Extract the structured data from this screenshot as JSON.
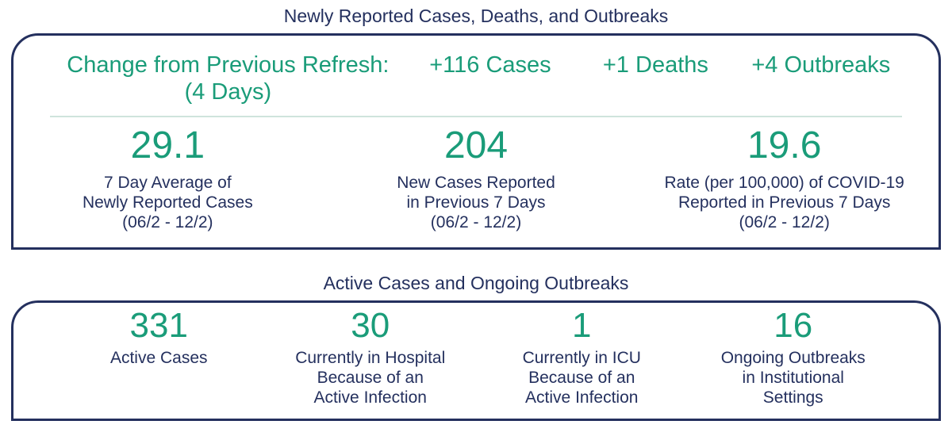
{
  "colors": {
    "navy": "#24305e",
    "green": "#1a9c79",
    "divider": "#cfe4dc"
  },
  "section1": {
    "title": "Newly Reported Cases, Deaths, and Outbreaks",
    "refresh": {
      "label_line1": "Change from Previous Refresh:",
      "label_line2": "(4 Days)",
      "deltas": [
        {
          "text": "+116 Cases"
        },
        {
          "text": "+1 Deaths"
        },
        {
          "text": "+4 Outbreaks"
        }
      ]
    },
    "stats": [
      {
        "value": "29.1",
        "label": "7 Day Average of\nNewly Reported Cases\n(06/2 - 12/2)"
      },
      {
        "value": "204",
        "label": "New Cases Reported\nin Previous 7 Days\n(06/2 - 12/2)"
      },
      {
        "value": "19.6",
        "label": "Rate (per 100,000) of COVID-19\nReported in Previous 7 Days\n(06/2 - 12/2)"
      }
    ]
  },
  "section2": {
    "title": "Active Cases and Ongoing Outbreaks",
    "stats": [
      {
        "value": "331",
        "label": "Active Cases"
      },
      {
        "value": "30",
        "label": "Currently in Hospital\nBecause of an\nActive Infection"
      },
      {
        "value": "1",
        "label": "Currently in ICU\nBecause of an\nActive Infection"
      },
      {
        "value": "16",
        "label": "Ongoing Outbreaks\nin Institutional\nSettings"
      }
    ]
  },
  "chart_data": [
    {
      "type": "table",
      "title": "Newly Reported Cases, Deaths, and Outbreaks",
      "categories": [
        "Change from Previous Refresh (4 Days) - Cases",
        "Change from Previous Refresh (4 Days) - Deaths",
        "Change from Previous Refresh (4 Days) - Outbreaks",
        "7 Day Average of Newly Reported Cases (06/2 - 12/2)",
        "New Cases Reported in Previous 7 Days (06/2 - 12/2)",
        "Rate (per 100,000) of COVID-19 Reported in Previous 7 Days (06/2 - 12/2)"
      ],
      "values": [
        116,
        1,
        4,
        29.1,
        204,
        19.6
      ]
    },
    {
      "type": "table",
      "title": "Active Cases and Ongoing Outbreaks",
      "categories": [
        "Active Cases",
        "Currently in Hospital Because of an Active Infection",
        "Currently in ICU Because of an Active Infection",
        "Ongoing Outbreaks in Institutional Settings"
      ],
      "values": [
        331,
        30,
        1,
        16
      ]
    }
  ]
}
